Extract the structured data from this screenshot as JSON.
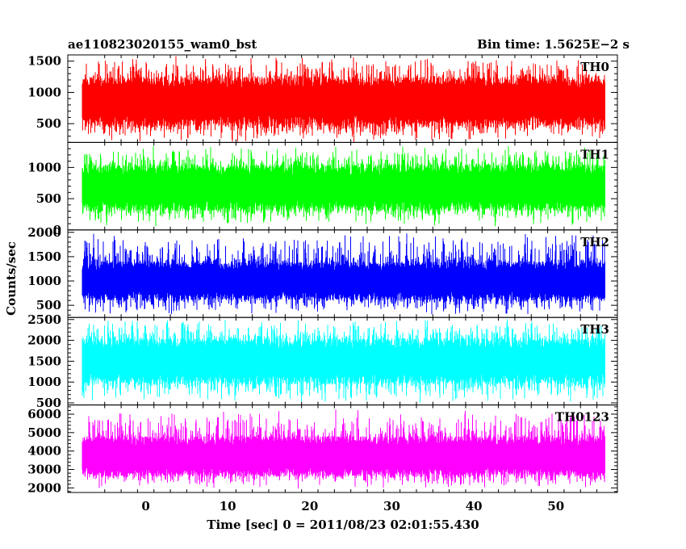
{
  "header": {
    "left_title": "ae110823020155_wam0_bst",
    "right_title": "Bin time: 1.5625E−2 s"
  },
  "chart_data": {
    "type": "line",
    "xlabel": "Time [sec] 0 = 2011/08/23 02:01:55.430",
    "ylabel": "Counts/sec",
    "xlim": [
      -9.5,
      57.5
    ],
    "data_x_range": [
      -7.8,
      56.0
    ],
    "xticks": [
      0,
      10,
      20,
      30,
      40,
      50
    ],
    "panels": [
      {
        "name": "TH0",
        "color": "#ff0000",
        "ylim": [
          200,
          1600
        ],
        "yticks": [
          500,
          1000,
          1500
        ],
        "typical_range": [
          450,
          1250
        ],
        "min": 200,
        "max": 1600,
        "seed": 11
      },
      {
        "name": "TH1",
        "color": "#00ff00",
        "ylim": [
          0,
          1400
        ],
        "yticks": [
          0,
          500,
          1000
        ],
        "typical_range": [
          300,
          1050
        ],
        "min": 50,
        "max": 1370,
        "seed": 23
      },
      {
        "name": "TH2",
        "color": "#0000ff",
        "ylim": [
          250,
          2050
        ],
        "yticks": [
          500,
          1000,
          1500,
          2000
        ],
        "typical_range": [
          600,
          1400
        ],
        "min": 270,
        "max": 2000,
        "seed": 37
      },
      {
        "name": "TH3",
        "color": "#00ffff",
        "ylim": [
          450,
          2550
        ],
        "yticks": [
          500,
          1000,
          1500,
          2000,
          2500
        ],
        "typical_range": [
          950,
          2050
        ],
        "min": 480,
        "max": 2550,
        "seed": 41
      },
      {
        "name": "TH0123",
        "color": "#ff00ff",
        "ylim": [
          1750,
          6500
        ],
        "yticks": [
          2000,
          3000,
          4000,
          5000,
          6000
        ],
        "typical_range": [
          2600,
          4800
        ],
        "min": 1900,
        "max": 6300,
        "seed": 53
      }
    ]
  }
}
